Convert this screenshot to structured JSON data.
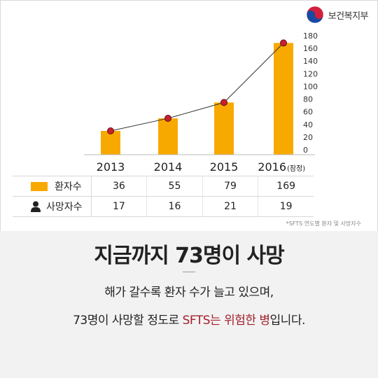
{
  "header": {
    "ministry": "보건복지부",
    "logo_icon": "taegeuk-icon"
  },
  "chart_data": {
    "type": "bar",
    "categories": [
      "2013",
      "2014",
      "2015",
      "2016"
    ],
    "category_notes": [
      "",
      "",
      "",
      "(잠정)"
    ],
    "series": [
      {
        "name": "환자수",
        "values": [
          36,
          55,
          79,
          169
        ],
        "color": "#f7a900",
        "style": "bar-with-line"
      },
      {
        "name": "사망자수",
        "values": [
          17,
          16,
          21,
          19
        ]
      }
    ],
    "y_ticks": [
      0,
      20,
      40,
      60,
      80,
      100,
      120,
      140,
      160,
      180
    ],
    "ylim": [
      0,
      180
    ],
    "y_axis_position": "right",
    "grid": false,
    "line_color": "#333333",
    "marker_color": "#c4222e"
  },
  "table": {
    "rows": [
      {
        "label": "환자수",
        "icon": "bar-legend-icon",
        "values": [
          "36",
          "55",
          "79",
          "169"
        ]
      },
      {
        "label": "사망자수",
        "icon": "person-icon",
        "values": [
          "17",
          "16",
          "21",
          "19"
        ]
      }
    ]
  },
  "source_note": "*SFTS 연도별 환자 및 사망자수",
  "headline": "지금까지 73명이 사망",
  "body": {
    "line1": "해가 갈수록 환자 수가 늘고 있으며,",
    "line2_prefix": "73명이 사망할 정도로 ",
    "line2_highlight": "SFTS는 위험한 병",
    "line2_suffix": "입니다."
  },
  "colors": {
    "accent_bar": "#f7a900",
    "highlight": "#a3202c",
    "lower_background": "#f2f2f2"
  }
}
